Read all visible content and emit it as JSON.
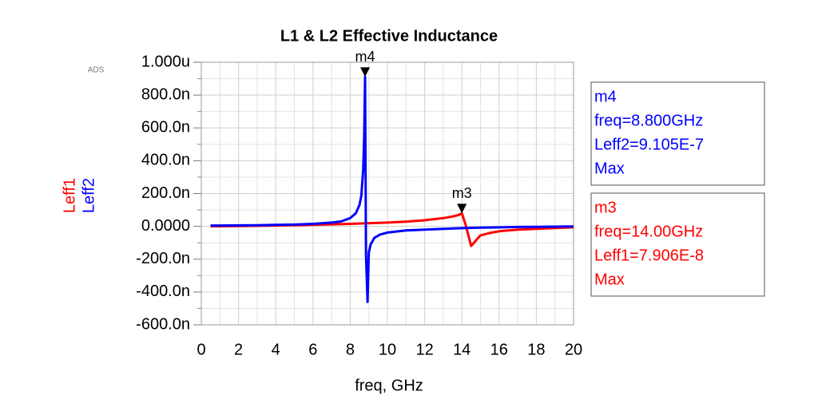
{
  "chart_data": {
    "type": "line",
    "title": "L1 & L2 Effective Inductance",
    "watermark": "ADS",
    "x_label": "freq, GHz",
    "xlim": [
      0,
      20
    ],
    "xticks": [
      0,
      2,
      4,
      6,
      8,
      10,
      12,
      14,
      16,
      18,
      20
    ],
    "ylim": [
      -6e-07,
      1e-06
    ],
    "yticks": [
      {
        "value": 1e-06,
        "label": "1.000u"
      },
      {
        "value": 8e-07,
        "label": "800.0n"
      },
      {
        "value": 6e-07,
        "label": "600.0n"
      },
      {
        "value": 4e-07,
        "label": "400.0n"
      },
      {
        "value": 2e-07,
        "label": "200.0n"
      },
      {
        "value": 0,
        "label": "0.0000"
      },
      {
        "value": -2e-07,
        "label": "-200.0n"
      },
      {
        "value": -4e-07,
        "label": "-400.0n"
      },
      {
        "value": -6e-07,
        "label": "-600.0n"
      }
    ],
    "grid": true,
    "series": [
      {
        "name": "Leff1",
        "color": "#ff0000",
        "x": [
          0.5,
          2,
          4,
          6,
          8,
          10,
          11,
          12,
          13,
          13.5,
          13.8,
          14,
          14.2,
          14.5,
          14.8,
          15,
          15.5,
          16,
          17,
          18,
          19,
          20
        ],
        "values": [
          0,
          2e-09,
          5e-09,
          9e-09,
          1.5e-08,
          2.3e-08,
          2.9e-08,
          3.7e-08,
          5e-08,
          6e-08,
          6.8e-08,
          7.906e-08,
          1e-08,
          -1.2e-07,
          -8e-08,
          -5.5e-08,
          -4e-08,
          -3e-08,
          -2e-08,
          -1.5e-08,
          -1e-08,
          -6e-09
        ]
      },
      {
        "name": "Leff2",
        "color": "#0000ff",
        "x": [
          0.5,
          1,
          2,
          3,
          4,
          5,
          6,
          7,
          7.5,
          8,
          8.3,
          8.5,
          8.6,
          8.7,
          8.75,
          8.8,
          8.85,
          8.93,
          9.0,
          9.1,
          9.3,
          9.6,
          10,
          11,
          12,
          13,
          14,
          15,
          16,
          17,
          18,
          19,
          20
        ],
        "values": [
          5e-09,
          5e-09,
          6e-09,
          7e-09,
          9e-09,
          1.1e-08,
          1.5e-08,
          2.3e-08,
          3e-08,
          5e-08,
          8e-08,
          1.3e-07,
          1.9e-07,
          3.5e-07,
          5.5e-07,
          9.105e-07,
          -1.8e-07,
          -4.6e-07,
          -1.6e-07,
          -1.1e-07,
          -7e-08,
          -5e-08,
          -3.8e-08,
          -2.5e-08,
          -2e-08,
          -1.5e-08,
          -1.1e-08,
          -8e-09,
          -6e-09,
          -4e-09,
          -3e-09,
          -2e-09,
          -1e-09
        ]
      }
    ],
    "markers": [
      {
        "name": "m4",
        "x": 8.8,
        "y": 9.105e-07,
        "color": "#0000ff",
        "lines": [
          "freq=8.800GHz",
          "Leff2=9.105E-7",
          "Max"
        ]
      },
      {
        "name": "m3",
        "x": 14,
        "y": 7.906e-08,
        "color": "#ff0000",
        "lines": [
          "freq=14.00GHz",
          "Leff1=7.906E-8",
          "Max"
        ]
      }
    ]
  }
}
